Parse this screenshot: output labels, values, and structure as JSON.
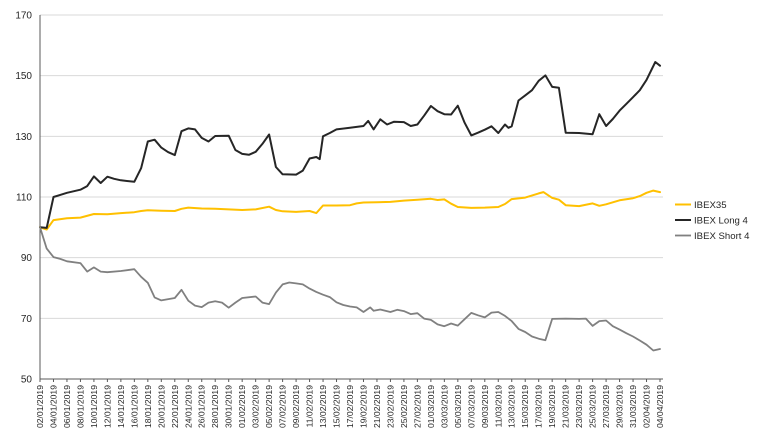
{
  "chart_data": {
    "type": "line",
    "title": "",
    "background": "#ffffff",
    "grid_on": true,
    "grid_color": "#d9d9d9",
    "axis_color": "#595959",
    "label_color": "#262626",
    "y_axis": {
      "min": 50,
      "max": 170,
      "tick_interval": 20,
      "tick_labels": [
        "170",
        "150",
        "130",
        "110",
        "90",
        "70",
        "50"
      ]
    },
    "x_axis": {
      "label_rotation": -90,
      "day_min": 0,
      "day_max": 92,
      "tick_labels": [
        "02/01/2019",
        "04/01/2019",
        "06/01/2019",
        "08/01/2019",
        "10/01/2019",
        "12/01/2019",
        "14/01/2019",
        "16/01/2019",
        "18/01/2019",
        "20/01/2019",
        "22/01/2019",
        "24/01/2019",
        "26/01/2019",
        "28/01/2019",
        "30/01/2019",
        "01/02/2019",
        "03/02/2019",
        "05/02/2019",
        "07/02/2019",
        "09/02/2019",
        "11/02/2019",
        "13/02/2019",
        "15/02/2019",
        "17/02/2019",
        "19/02/2019",
        "21/02/2019",
        "23/02/2019",
        "25/02/2019",
        "27/02/2019",
        "01/03/2019",
        "03/03/2019",
        "05/03/2019",
        "07/03/2019",
        "09/03/2019",
        "11/03/2019",
        "13/03/2019",
        "15/03/2019",
        "17/03/2019",
        "19/03/2019",
        "21/03/2019",
        "23/03/2019",
        "25/03/2019",
        "27/03/2019",
        "29/03/2019",
        "31/03/2019",
        "02/04/2019",
        "04/04/2019"
      ]
    },
    "legend": {
      "position": "right",
      "entries": [
        "IBEX35",
        "IBEX Long 4",
        "IBEX Short 4"
      ]
    },
    "series": [
      {
        "name": "IBEX35",
        "color": "#FFC000",
        "width": 2,
        "points": [
          [
            0,
            100
          ],
          [
            1,
            99.3
          ],
          [
            2,
            102.4
          ],
          [
            4,
            103
          ],
          [
            6,
            103.2
          ],
          [
            8,
            104.4
          ],
          [
            10,
            104.3
          ],
          [
            12,
            104.7
          ],
          [
            14,
            105
          ],
          [
            15,
            105.4
          ],
          [
            16,
            105.6
          ],
          [
            18,
            105.5
          ],
          [
            20,
            105.4
          ],
          [
            21,
            106.1
          ],
          [
            22,
            106.5
          ],
          [
            24,
            106.2
          ],
          [
            26,
            106.1
          ],
          [
            28,
            105.9
          ],
          [
            30,
            105.7
          ],
          [
            32,
            105.9
          ],
          [
            34,
            106.8
          ],
          [
            35,
            105.7
          ],
          [
            36,
            105.3
          ],
          [
            38,
            105.1
          ],
          [
            40,
            105.4
          ],
          [
            41,
            104.7
          ],
          [
            42,
            107.2
          ],
          [
            44,
            107.2
          ],
          [
            46,
            107.3
          ],
          [
            47,
            107.9
          ],
          [
            48,
            108.2
          ],
          [
            50,
            108.3
          ],
          [
            52,
            108.4
          ],
          [
            54,
            108.8
          ],
          [
            56,
            109.1
          ],
          [
            58,
            109.4
          ],
          [
            59,
            109
          ],
          [
            60,
            109.2
          ],
          [
            61,
            107.8
          ],
          [
            62,
            106.7
          ],
          [
            64,
            106.4
          ],
          [
            66,
            106.5
          ],
          [
            68,
            106.7
          ],
          [
            69,
            107.7
          ],
          [
            70,
            109.3
          ],
          [
            72,
            109.8
          ],
          [
            74,
            111.2
          ],
          [
            74.7,
            111.6
          ],
          [
            76,
            109.7
          ],
          [
            77,
            109.1
          ],
          [
            78,
            107.3
          ],
          [
            80,
            107
          ],
          [
            82,
            107.9
          ],
          [
            83,
            107.1
          ],
          [
            84,
            107.6
          ],
          [
            86,
            108.9
          ],
          [
            88,
            109.6
          ],
          [
            89,
            110.3
          ],
          [
            90,
            111.4
          ],
          [
            91,
            112.1
          ],
          [
            92,
            111.6
          ]
        ]
      },
      {
        "name": "IBEX Long 4",
        "color": "#262626",
        "width": 2,
        "points": [
          [
            0,
            100
          ],
          [
            1,
            99.8
          ],
          [
            2,
            110
          ],
          [
            3,
            110.7
          ],
          [
            4,
            111.4
          ],
          [
            6,
            112.4
          ],
          [
            7,
            113.6
          ],
          [
            8,
            116.8
          ],
          [
            9,
            114.6
          ],
          [
            10,
            116.7
          ],
          [
            11,
            116
          ],
          [
            12,
            115.5
          ],
          [
            14,
            115
          ],
          [
            15,
            119.5
          ],
          [
            16,
            128.3
          ],
          [
            17,
            128.9
          ],
          [
            18,
            126.3
          ],
          [
            19,
            124.8
          ],
          [
            20,
            123.8
          ],
          [
            21,
            131.7
          ],
          [
            22,
            132.6
          ],
          [
            23,
            132.3
          ],
          [
            24,
            129.5
          ],
          [
            25,
            128.3
          ],
          [
            26,
            130.1
          ],
          [
            28,
            130.2
          ],
          [
            29,
            125.5
          ],
          [
            30,
            124.2
          ],
          [
            31,
            123.9
          ],
          [
            32,
            124.9
          ],
          [
            33,
            127.5
          ],
          [
            34,
            130.6
          ],
          [
            35,
            119.9
          ],
          [
            36,
            117.5
          ],
          [
            38,
            117.4
          ],
          [
            39,
            118.7
          ],
          [
            40,
            122.7
          ],
          [
            41,
            123.2
          ],
          [
            41.5,
            122.5
          ],
          [
            42,
            130
          ],
          [
            43,
            131.1
          ],
          [
            44,
            132.3
          ],
          [
            46,
            132.8
          ],
          [
            48,
            133.4
          ],
          [
            48.7,
            135.1
          ],
          [
            49.5,
            132.3
          ],
          [
            50.5,
            135.6
          ],
          [
            51.5,
            133.9
          ],
          [
            52.5,
            134.8
          ],
          [
            54,
            134.7
          ],
          [
            55,
            133.4
          ],
          [
            56,
            133.9
          ],
          [
            57,
            136.8
          ],
          [
            58,
            140
          ],
          [
            59,
            138.3
          ],
          [
            60,
            137.3
          ],
          [
            61,
            137.2
          ],
          [
            62,
            140.1
          ],
          [
            63,
            134.5
          ],
          [
            64,
            130.3
          ],
          [
            65,
            131.2
          ],
          [
            66,
            132.2
          ],
          [
            67,
            133.3
          ],
          [
            68,
            131.1
          ],
          [
            69,
            133.9
          ],
          [
            69.5,
            132.8
          ],
          [
            70,
            133.3
          ],
          [
            71,
            141.8
          ],
          [
            72,
            143.5
          ],
          [
            73,
            145.2
          ],
          [
            74,
            148.3
          ],
          [
            75,
            150.1
          ],
          [
            76,
            146.3
          ],
          [
            77,
            146
          ],
          [
            78,
            131.2
          ],
          [
            80,
            131.1
          ],
          [
            82,
            130.7
          ],
          [
            83,
            137.3
          ],
          [
            84,
            133.4
          ],
          [
            85,
            135.7
          ],
          [
            86,
            138.5
          ],
          [
            87,
            140.7
          ],
          [
            88,
            142.9
          ],
          [
            89,
            145.2
          ],
          [
            90,
            148.6
          ],
          [
            91.3,
            154.5
          ],
          [
            92,
            153.3
          ]
        ]
      },
      {
        "name": "IBEX Short 4",
        "color": "#808080",
        "width": 1.8,
        "points": [
          [
            0,
            100
          ],
          [
            1,
            93
          ],
          [
            2,
            90.2
          ],
          [
            3,
            89.6
          ],
          [
            4,
            88.8
          ],
          [
            6,
            88.2
          ],
          [
            7,
            85.4
          ],
          [
            8,
            86.8
          ],
          [
            9,
            85.4
          ],
          [
            10,
            85.2
          ],
          [
            12,
            85.6
          ],
          [
            14,
            86.2
          ],
          [
            15,
            83.7
          ],
          [
            16,
            81.7
          ],
          [
            17,
            76.9
          ],
          [
            18,
            75.9
          ],
          [
            20,
            76.7
          ],
          [
            21,
            79.4
          ],
          [
            22,
            75.8
          ],
          [
            23,
            74.2
          ],
          [
            24,
            73.7
          ],
          [
            25,
            75.2
          ],
          [
            26,
            75.6
          ],
          [
            27,
            75.2
          ],
          [
            28,
            73.5
          ],
          [
            29,
            75.2
          ],
          [
            30,
            76.7
          ],
          [
            32,
            77.2
          ],
          [
            33,
            75.2
          ],
          [
            34,
            74.7
          ],
          [
            35,
            78.5
          ],
          [
            36,
            81.2
          ],
          [
            37,
            81.8
          ],
          [
            38,
            81.5
          ],
          [
            39,
            81.2
          ],
          [
            40,
            79.8
          ],
          [
            41,
            78.7
          ],
          [
            42,
            77.8
          ],
          [
            43,
            77
          ],
          [
            44,
            75.3
          ],
          [
            45,
            74.4
          ],
          [
            46,
            73.9
          ],
          [
            47,
            73.6
          ],
          [
            48,
            72.1
          ],
          [
            49,
            73.6
          ],
          [
            49.5,
            72.5
          ],
          [
            50.5,
            72.9
          ],
          [
            52,
            72.1
          ],
          [
            53,
            72.8
          ],
          [
            54,
            72.4
          ],
          [
            55,
            71.4
          ],
          [
            56,
            71.7
          ],
          [
            57,
            69.9
          ],
          [
            58,
            69.5
          ],
          [
            59,
            68
          ],
          [
            60,
            67.4
          ],
          [
            61,
            68.3
          ],
          [
            62,
            67.6
          ],
          [
            63,
            69.7
          ],
          [
            64,
            71.8
          ],
          [
            65,
            71
          ],
          [
            66,
            70.3
          ],
          [
            67,
            71.9
          ],
          [
            68,
            72.1
          ],
          [
            69,
            70.8
          ],
          [
            70,
            69.1
          ],
          [
            71,
            66.5
          ],
          [
            72,
            65.5
          ],
          [
            73,
            64
          ],
          [
            74,
            63.3
          ],
          [
            75,
            62.8
          ],
          [
            76,
            69.8
          ],
          [
            78,
            69.9
          ],
          [
            80,
            69.8
          ],
          [
            81,
            69.9
          ],
          [
            82,
            67.5
          ],
          [
            83,
            69.1
          ],
          [
            84,
            69.3
          ],
          [
            85,
            67.4
          ],
          [
            86,
            66.3
          ],
          [
            87,
            65.1
          ],
          [
            88,
            64
          ],
          [
            89,
            62.7
          ],
          [
            90,
            61.3
          ],
          [
            91,
            59.4
          ],
          [
            92,
            59.9
          ]
        ]
      }
    ]
  }
}
